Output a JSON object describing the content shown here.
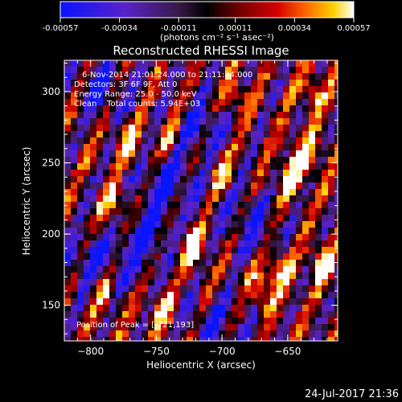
{
  "colorbar": {
    "ticks": [
      -0.00057,
      -0.00034,
      -0.00011,
      0.00011,
      0.00034,
      0.00057
    ],
    "tick_labels": [
      "-0.00057",
      "-0.00034",
      "-0.00011",
      "0.00011",
      "0.00034",
      "0.00057"
    ],
    "unit_label": "(photons cm⁻² s⁻¹ asec⁻²)"
  },
  "chart_data": {
    "type": "heatmap",
    "title": "Reconstructed RHESSI Image",
    "xlabel": "Heliocentric X (arcsec)",
    "ylabel": "Heliocentric Y (arcsec)",
    "xlim": [
      -820,
      -612
    ],
    "ylim": [
      125,
      322
    ],
    "xticks": [
      -800,
      -750,
      -700,
      -650
    ],
    "yticks": [
      150,
      200,
      250,
      300
    ],
    "value_range": [
      -0.00057,
      0.00057
    ],
    "peak": [
      -721,
      193
    ],
    "annotations": [
      "6-Nov-2014 21:01:24.000 to 21:11:24.000",
      "Detectors: 3F 6F 9F, Att 0",
      "Energy Range: 25.0 - 50.0 keV",
      "Clean    Total counts: 5.94E+03",
      "Position of Peak = [-721,193]"
    ],
    "hot_regions": [
      {
        "x": -721,
        "y": 193,
        "level": 1.0
      },
      {
        "x": -635,
        "y": 255,
        "level": 0.9
      },
      {
        "x": -650,
        "y": 240,
        "level": 0.85
      },
      {
        "x": -625,
        "y": 180,
        "level": 0.85
      },
      {
        "x": -668,
        "y": 160,
        "level": 0.8
      },
      {
        "x": -655,
        "y": 175,
        "level": 0.8
      },
      {
        "x": -782,
        "y": 220,
        "level": 0.8
      },
      {
        "x": -770,
        "y": 265,
        "level": 0.75
      },
      {
        "x": -690,
        "y": 295,
        "level": 0.7
      },
      {
        "x": -700,
        "y": 245,
        "level": 0.7
      },
      {
        "x": -740,
        "y": 270,
        "level": 0.65
      },
      {
        "x": -790,
        "y": 160,
        "level": 0.65
      },
      {
        "x": -630,
        "y": 300,
        "level": 0.7
      },
      {
        "x": -745,
        "y": 145,
        "level": 0.65
      }
    ],
    "cold_regions": [
      {
        "x": -740,
        "y": 235,
        "level": 0.9
      },
      {
        "x": -760,
        "y": 195,
        "level": 0.85
      },
      {
        "x": -715,
        "y": 275,
        "level": 0.8
      },
      {
        "x": -790,
        "y": 305,
        "level": 0.75
      },
      {
        "x": -680,
        "y": 210,
        "level": 0.7
      },
      {
        "x": -800,
        "y": 180,
        "level": 0.8
      },
      {
        "x": -705,
        "y": 135,
        "level": 0.7
      }
    ]
  },
  "footer": {
    "date_stamp": "24-Jul-2017 21:36"
  }
}
